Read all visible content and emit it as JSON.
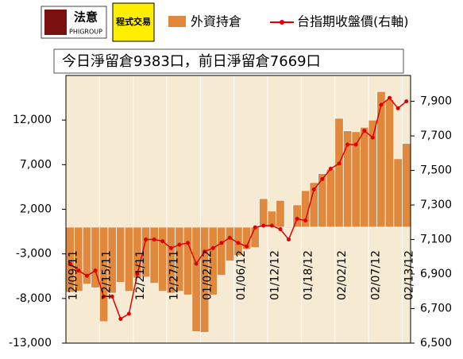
{
  "chart_data": {
    "type": "bar",
    "brand": "法意",
    "brand_sub": "PHIGROUP",
    "brand2": "程式交易",
    "title": "今日淨留倉9383口，前日淨留倉7669口",
    "categories": [
      "12/09/11",
      null,
      null,
      null,
      "12/15/11",
      null,
      null,
      null,
      "12/21/11",
      null,
      null,
      null,
      "12/27/11",
      null,
      null,
      null,
      "01/02/12",
      null,
      null,
      null,
      "01/06/12",
      null,
      null,
      null,
      "01/12/12",
      null,
      null,
      null,
      "01/18/12",
      null,
      null,
      null,
      "02/02/12",
      null,
      null,
      null,
      "02/07/12",
      null,
      null,
      null,
      "02/13/12"
    ],
    "series": [
      {
        "name": "外資持倉",
        "color": "#e0883c",
        "values": [
          -7300,
          -7200,
          -6400,
          -6800,
          -10600,
          -7400,
          -6200,
          -7200,
          -5700,
          -5600,
          -6300,
          -7200,
          -7400,
          -7200,
          -7600,
          -11700,
          -11800,
          -7600,
          -5400,
          -3800,
          -3200,
          -2500,
          -2300,
          3200,
          1800,
          3000,
          -100,
          2500,
          4100,
          5000,
          6000,
          6500,
          12200,
          10800,
          10700,
          11200,
          12000,
          15200,
          14300,
          7669,
          9383
        ]
      },
      {
        "name": "台指期收盤價(右軸)",
        "color": "#e00000",
        "axis": "y2",
        "type": "line",
        "values": [
          6960,
          6920,
          6890,
          6920,
          6770,
          6770,
          6640,
          6670,
          6900,
          7100,
          7100,
          7090,
          7050,
          7070,
          7080,
          6960,
          7030,
          7050,
          7080,
          7110,
          7080,
          7060,
          7170,
          7180,
          7180,
          7160,
          7100,
          7220,
          7210,
          7390,
          7450,
          7510,
          7540,
          7650,
          7650,
          7730,
          7690,
          7880,
          7920,
          7860,
          7900
        ]
      }
    ],
    "ylim": [
      -13000,
      17000
    ],
    "yticks": [
      {
        "value": -13000,
        "label": "-13,000"
      },
      {
        "value": -8000,
        "label": "-8,000"
      },
      {
        "value": -3000,
        "label": "-3,000"
      },
      {
        "value": 2000,
        "label": "2,000"
      },
      {
        "value": 7000,
        "label": "7,000"
      },
      {
        "value": 12000,
        "label": "12,000"
      }
    ],
    "y2lim": [
      6500,
      8050
    ],
    "y2ticks": [
      {
        "value": 6500,
        "label": "6,500"
      },
      {
        "value": 6700,
        "label": "6,700"
      },
      {
        "value": 6900,
        "label": "6,900"
      },
      {
        "value": 7100,
        "label": "7,100"
      },
      {
        "value": 7300,
        "label": "7,300"
      },
      {
        "value": 7500,
        "label": "7,500"
      },
      {
        "value": 7700,
        "label": "7,700"
      },
      {
        "value": 7900,
        "label": "7,900"
      }
    ]
  }
}
